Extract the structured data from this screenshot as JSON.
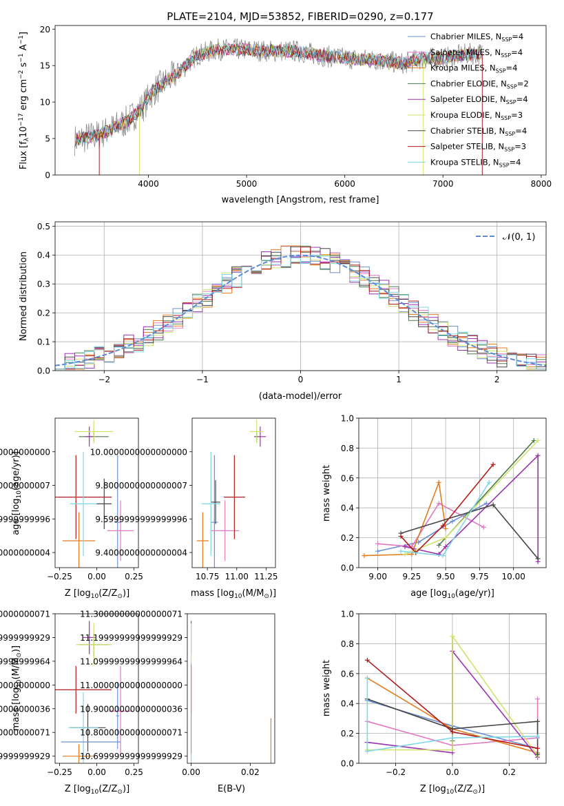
{
  "colors": {
    "chabrier_miles": "#6b8fd6",
    "salpeter_miles": "#e377c2",
    "kroupa_miles": "#e07b1f",
    "chabrier_elodie": "#4a7a4a",
    "salpeter_elodie": "#9b30b0",
    "kroupa_elodie": "#cfe36a",
    "chabrier_stelib": "#444444",
    "salpeter_stelib": "#b01a1a",
    "kroupa_stelib": "#7fd6e6",
    "gaussian": "#5b8ad6",
    "grid": "#b0b0b0"
  },
  "chart_data": [
    {
      "id": "spectrum",
      "type": "line",
      "title": "PLATE=2104, MJD=53852, FIBERID=0290, z=0.177",
      "xlabel": "wavelength [Angstrom, rest frame]",
      "ylabel_main": "Flux [f",
      "ylabel_sub": "λ",
      "ylabel_mid": "10",
      "ylabel_sup": "−17",
      "ylabel_rest": " erg cm",
      "ylabel_sup2": "−2",
      "ylabel_rest2": " s",
      "ylabel_sup3": "−1",
      "ylabel_rest3": " A",
      "ylabel_sup4": "−1",
      "ylabel_end": "]",
      "xlim": [
        3050,
        8050
      ],
      "ylim": [
        0,
        20.5
      ],
      "xticks": [
        4000,
        5000,
        6000,
        7000,
        8000
      ],
      "yticks": [
        0,
        5,
        10,
        15,
        20
      ],
      "grid": false,
      "legend_position": "top-right",
      "spectrum_anchor_x": [
        3250,
        3500,
        3800,
        3950,
        4050,
        4200,
        4300,
        4500,
        4700,
        5000,
        5200,
        5500,
        5800,
        6000,
        6300,
        6600,
        6800,
        7000,
        7200,
        7400
      ],
      "spectrum_anchor_y": [
        4.8,
        5.5,
        7.5,
        9.5,
        11.5,
        13.0,
        14.0,
        16.5,
        17.2,
        17.2,
        17.0,
        17.0,
        16.3,
        16.0,
        15.8,
        15.3,
        16.0,
        16.0,
        16.5,
        16.7
      ],
      "legend": [
        {
          "label": "Chabrier MILES, N",
          "sub": "SSP",
          "value": "=4",
          "color_key": "chabrier_miles"
        },
        {
          "label": "Salpeter MILES, N",
          "sub": "SSP",
          "value": "=4",
          "color_key": "salpeter_miles"
        },
        {
          "label": "Kroupa MILES, N",
          "sub": "SSP",
          "value": "=4",
          "color_key": "kroupa_miles"
        },
        {
          "label": "Chabrier ELODIE, N",
          "sub": "SSP",
          "value": "=2",
          "color_key": "chabrier_elodie"
        },
        {
          "label": "Salpeter ELODIE, N",
          "sub": "SSP",
          "value": "=4",
          "color_key": "salpeter_elodie"
        },
        {
          "label": "Kroupa ELODIE, N",
          "sub": "SSP",
          "value": "=3",
          "color_key": "kroupa_elodie"
        },
        {
          "label": "Chabrier STELIB, N",
          "sub": "SSP",
          "value": "=4",
          "color_key": "chabrier_stelib"
        },
        {
          "label": "Salpeter STELIB, N",
          "sub": "SSP",
          "value": "=3",
          "color_key": "salpeter_stelib"
        },
        {
          "label": "Kroupa STELIB, N",
          "sub": "SSP",
          "value": "=4",
          "color_key": "kroupa_stelib"
        }
      ]
    },
    {
      "id": "residuals",
      "type": "histogram",
      "xlabel": "(data-model)/error",
      "ylabel": "Normed distribution",
      "xlim": [
        -2.5,
        2.5
      ],
      "ylim": [
        0,
        0.515
      ],
      "xticks": [
        -2,
        -1,
        0,
        1,
        2
      ],
      "yticks": [
        0.0,
        0.1,
        0.2,
        0.3,
        0.4,
        0.5
      ],
      "bin_width": 0.1,
      "grid": true,
      "legend_position": "top-right",
      "gaussian_label": "𝒩(0, 1)",
      "gaussian": {
        "mean": 0,
        "sigma": 1
      }
    },
    {
      "id": "age_vs_Z",
      "type": "errorbar",
      "xlabel": "Z [log",
      "xlabel_sub": "10",
      "xlabel_rest": "(Z/Z",
      "xlabel_sub2": "⊙",
      "xlabel_end": ")]",
      "ylabel": "age  [log",
      "ylabel_sub": "10",
      "ylabel_rest": "(age/yr)]",
      "xlim": [
        -0.28,
        0.28
      ],
      "ylim": [
        9.31,
        10.2
      ],
      "xticks": [
        -0.25,
        0.0,
        0.25
      ],
      "yticks": [
        9.4,
        9.6,
        9.8,
        10.0
      ],
      "points": [
        {
          "color_key": "chabrier_miles",
          "x": 0.14,
          "y": 9.58,
          "xerr": 0.02,
          "yerr": 0.4
        },
        {
          "color_key": "salpeter_miles",
          "x": 0.16,
          "y": 9.53,
          "xerr": 0.09,
          "yerr": 0.18
        },
        {
          "color_key": "kroupa_miles",
          "x": -0.12,
          "y": 9.47,
          "xerr": 0.11,
          "yerr": 0.17
        },
        {
          "color_key": "chabrier_elodie",
          "x": -0.02,
          "y": 10.09,
          "xerr": 0.1,
          "yerr": 0.03
        },
        {
          "color_key": "salpeter_elodie",
          "x": -0.05,
          "y": 10.09,
          "xerr": 0.03,
          "yerr": 0.06
        },
        {
          "color_key": "kroupa_elodie",
          "x": -0.02,
          "y": 10.12,
          "xerr": 0.13,
          "yerr": 0.07
        },
        {
          "color_key": "chabrier_stelib",
          "x": 0.05,
          "y": 9.69,
          "xerr": 0.05,
          "yerr": 0.15
        },
        {
          "color_key": "salpeter_stelib",
          "x": -0.14,
          "y": 9.73,
          "xerr": 0.24,
          "yerr": 0.25
        },
        {
          "color_key": "kroupa_stelib",
          "x": -0.09,
          "y": 9.69,
          "xerr": 0.09,
          "yerr": 0.31
        }
      ]
    },
    {
      "id": "age_vs_mass",
      "type": "errorbar",
      "xlabel": "mass [log",
      "xlabel_sub": "10",
      "xlabel_rest": "(M/M",
      "xlabel_sub2": "⊙",
      "xlabel_end": ")]",
      "xlim": [
        10.62,
        11.33
      ],
      "ylim": [
        9.31,
        10.2
      ],
      "xticks": [
        10.75,
        11.0,
        11.25
      ],
      "yticks": [
        9.4,
        9.6,
        9.8,
        10.0
      ],
      "points": [
        {
          "color_key": "chabrier_miles",
          "x": 10.81,
          "y": 9.58,
          "xerr": 0.03,
          "yerr": 0.4
        },
        {
          "color_key": "salpeter_miles",
          "x": 10.9,
          "y": 9.53,
          "xerr": 0.12,
          "yerr": 0.18
        },
        {
          "color_key": "kroupa_miles",
          "x": 10.71,
          "y": 9.47,
          "xerr": 0.05,
          "yerr": 0.17
        },
        {
          "color_key": "chabrier_elodie",
          "x": 11.17,
          "y": 10.09,
          "xerr": 0.02,
          "yerr": 0.03
        },
        {
          "color_key": "salpeter_elodie",
          "x": 11.2,
          "y": 10.09,
          "xerr": 0.05,
          "yerr": 0.06
        },
        {
          "color_key": "kroupa_elodie",
          "x": 11.17,
          "y": 10.12,
          "xerr": 0.06,
          "yerr": 0.07
        },
        {
          "color_key": "chabrier_stelib",
          "x": 10.82,
          "y": 9.7,
          "xerr": 0.04,
          "yerr": 0.13
        },
        {
          "color_key": "salpeter_stelib",
          "x": 10.98,
          "y": 9.73,
          "xerr": 0.09,
          "yerr": 0.25
        },
        {
          "color_key": "kroupa_stelib",
          "x": 10.78,
          "y": 9.69,
          "xerr": 0.08,
          "yerr": 0.31
        }
      ]
    },
    {
      "id": "weight_vs_age",
      "type": "line",
      "xlabel": "age  [log",
      "xlabel_sub": "10",
      "xlabel_rest": "(age/yr)]",
      "ylabel": "mass weight",
      "xlim": [
        8.86,
        10.24
      ],
      "ylim": [
        0,
        1.0
      ],
      "xticks": [
        9.0,
        9.25,
        9.5,
        9.75,
        10.0
      ],
      "yticks": [
        0.0,
        0.2,
        0.4,
        0.6,
        0.8,
        1.0
      ],
      "grid": true,
      "series": [
        {
          "color_key": "chabrier_miles",
          "x": [
            9.0,
            9.3,
            9.55,
            9.8
          ],
          "y": [
            0.11,
            0.17,
            0.31,
            0.43
          ]
        },
        {
          "color_key": "salpeter_miles",
          "x": [
            9.0,
            9.25,
            9.45,
            9.78
          ],
          "y": [
            0.16,
            0.14,
            0.43,
            0.27
          ]
        },
        {
          "color_key": "kroupa_miles",
          "x": [
            8.9,
            9.25,
            9.45,
            9.5
          ],
          "y": [
            0.08,
            0.09,
            0.57,
            0.26
          ]
        },
        {
          "color_key": "chabrier_elodie",
          "x": [
            9.45,
            10.15
          ],
          "y": [
            0.15,
            0.85
          ]
        },
        {
          "color_key": "salpeter_elodie",
          "x": [
            9.2,
            9.45,
            9.5,
            10.18,
            10.18
          ],
          "y": [
            0.14,
            0.09,
            0.14,
            0.75,
            0.04
          ]
        },
        {
          "color_key": "kroupa_elodie",
          "x": [
            9.2,
            9.5,
            10.18
          ],
          "y": [
            0.09,
            0.2,
            0.85
          ]
        },
        {
          "color_key": "chabrier_stelib",
          "x": [
            9.17,
            9.85,
            10.18
          ],
          "y": [
            0.23,
            0.42,
            0.06
          ]
        },
        {
          "color_key": "salpeter_stelib",
          "x": [
            9.17,
            9.28,
            9.48,
            9.85
          ],
          "y": [
            0.21,
            0.1,
            0.28,
            0.69
          ]
        },
        {
          "color_key": "kroupa_stelib",
          "x": [
            9.17,
            9.48,
            9.82
          ],
          "y": [
            0.11,
            0.08,
            0.57
          ]
        }
      ]
    },
    {
      "id": "mass_vs_Z",
      "type": "errorbar",
      "xlabel": "Z [log",
      "xlabel_sub": "10",
      "xlabel_rest": "(Z/Z",
      "xlabel_sub2": "⊙",
      "xlabel_end": ")]",
      "ylabel": "mass [log",
      "ylabel_sub": "10",
      "ylabel_rest": "(M/M",
      "ylabel_sub2": "⊙",
      "ylabel_end": ")]",
      "xlim": [
        -0.28,
        0.28
      ],
      "ylim": [
        10.67,
        11.3
      ],
      "xticks": [
        -0.25,
        0.0,
        0.25
      ],
      "yticks": [
        10.7,
        10.8,
        10.9,
        11.0,
        11.1,
        11.2,
        11.3
      ],
      "points": [
        {
          "color_key": "chabrier_miles",
          "x": 0.14,
          "y": 10.87,
          "xerr": 0.01,
          "yerr": 0.14
        },
        {
          "color_key": "salpeter_miles",
          "x": 0.16,
          "y": 10.89,
          "xerr": 0.08,
          "yerr": 0.19
        },
        {
          "color_key": "kroupa_miles",
          "x": -0.12,
          "y": 10.7,
          "xerr": 0.11,
          "yerr": 0.05
        },
        {
          "color_key": "chabrier_elodie",
          "x": -0.02,
          "y": 11.17,
          "xerr": 0.1,
          "yerr": 0.05
        },
        {
          "color_key": "salpeter_elodie",
          "x": -0.05,
          "y": 11.2,
          "xerr": 0.04,
          "yerr": 0.07
        },
        {
          "color_key": "kroupa_elodie",
          "x": -0.02,
          "y": 11.17,
          "xerr": 0.12,
          "yerr": 0.09
        },
        {
          "color_key": "chabrier_stelib",
          "x": -0.06,
          "y": 10.82,
          "xerr": 0.12,
          "yerr": 0.1
        },
        {
          "color_key": "salpeter_stelib",
          "x": -0.14,
          "y": 10.98,
          "xerr": 0.24,
          "yerr": 0.1
        },
        {
          "color_key": "kroupa_stelib",
          "x": -0.09,
          "y": 10.82,
          "xerr": 0.1,
          "yerr": 0.15
        },
        {
          "color_key": "chabrier_miles",
          "x": -0.04,
          "y": 10.76,
          "xerr": 0.2,
          "yerr": 0.0
        }
      ]
    },
    {
      "id": "mass_vs_ebv",
      "type": "errorbar",
      "xlabel": "E(B-V)",
      "xlim": [
        -0.0013,
        0.0283
      ],
      "ylim": [
        10.67,
        11.3
      ],
      "xticks": [
        0.0,
        0.02
      ],
      "xticklabels": [
        "0.00",
        "0.02"
      ],
      "yticks": [
        10.7,
        10.8,
        10.9,
        11.0,
        11.1,
        11.2,
        11.3
      ],
      "points": [
        {
          "color_key": "salpeter_elodie",
          "x": 0.0,
          "y": 11.2,
          "xerr": 0.0,
          "yerr": 0.07
        },
        {
          "color_key": "kroupa_elodie",
          "x": 0.0,
          "y": 11.17,
          "xerr": 0.0,
          "yerr": 0.09
        },
        {
          "color_key": "salpeter_stelib",
          "x": 0.0,
          "y": 10.98,
          "xerr": 0.0,
          "yerr": 0.1
        },
        {
          "color_key": "kroupa_stelib",
          "x": 0.0,
          "y": 10.82,
          "xerr": 0.0,
          "yerr": 0.15
        },
        {
          "color_key": "salpeter_miles",
          "x": 0.0,
          "y": 10.9,
          "xerr": 0.0,
          "yerr": 0.19
        },
        {
          "color_key": "kroupa_miles",
          "x": 0.027,
          "y": 10.7,
          "xerr": 0.0,
          "yerr": 0.16
        }
      ]
    },
    {
      "id": "weight_vs_Z",
      "type": "line",
      "xlabel": "Z [log",
      "xlabel_sub": "10",
      "xlabel_rest": "(Z/Z",
      "xlabel_sub2": "⊙",
      "xlabel_end": ")]",
      "ylabel": "mass weight",
      "xlim": [
        -0.33,
        0.33
      ],
      "ylim": [
        0,
        1.0
      ],
      "xticks": [
        -0.2,
        0.0,
        0.2
      ],
      "xticklabels": [
        "−0.2",
        "0.0",
        "0.2"
      ],
      "yticks": [
        0.0,
        0.2,
        0.4,
        0.6,
        0.8,
        1.0
      ],
      "grid": true,
      "series": [
        {
          "color_key": "chabrier_miles",
          "x": [
            -0.3,
            0.0,
            0.3
          ],
          "y": [
            0.42,
            0.25,
            0.1
          ]
        },
        {
          "color_key": "salpeter_miles",
          "x": [
            -0.3,
            0.0,
            0.3,
            0.3
          ],
          "y": [
            0.28,
            0.12,
            0.17,
            0.43
          ]
        },
        {
          "color_key": "kroupa_miles",
          "x": [
            -0.3,
            0.0,
            0.3
          ],
          "y": [
            0.57,
            0.23,
            0.07
          ]
        },
        {
          "color_key": "chabrier_elodie",
          "x": [
            0.0,
            0.0
          ],
          "y": [
            0.15,
            0.85
          ]
        },
        {
          "color_key": "salpeter_elodie",
          "x": [
            -0.3,
            0.0,
            0.0,
            0.3
          ],
          "y": [
            0.14,
            0.07,
            0.75,
            0.04
          ]
        },
        {
          "color_key": "kroupa_elodie",
          "x": [
            -0.3,
            0.0,
            0.0,
            0.3
          ],
          "y": [
            0.09,
            0.09,
            0.85,
            0.05
          ]
        },
        {
          "color_key": "chabrier_stelib",
          "x": [
            -0.3,
            0.0,
            0.3,
            0.3
          ],
          "y": [
            0.43,
            0.23,
            0.28,
            0.06
          ]
        },
        {
          "color_key": "salpeter_stelib",
          "x": [
            -0.3,
            0.0,
            0.3
          ],
          "y": [
            0.69,
            0.21,
            0.1
          ]
        },
        {
          "color_key": "kroupa_stelib",
          "x": [
            -0.3,
            -0.3,
            0.0,
            0.3
          ],
          "y": [
            0.57,
            0.08,
            0.17,
            0.18
          ]
        }
      ]
    }
  ]
}
